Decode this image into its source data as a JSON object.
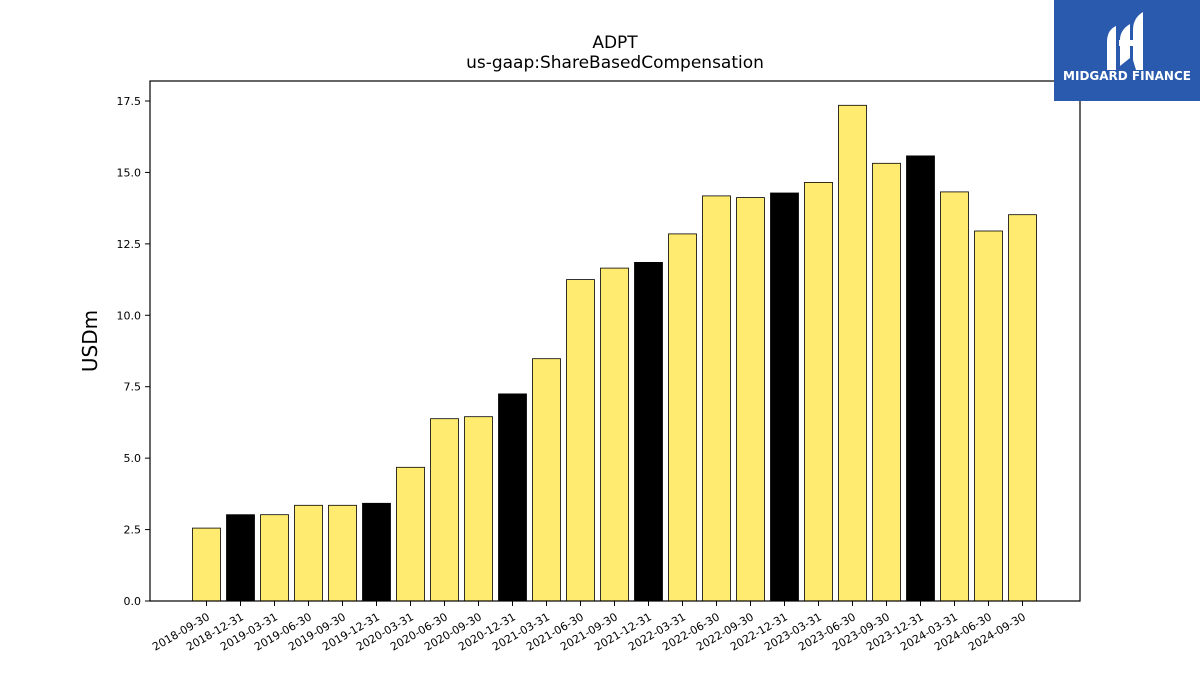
{
  "chart_data": {
    "type": "bar",
    "title": "ADPT",
    "subtitle": "us-gaap:ShareBasedCompensation",
    "xlabel": "",
    "ylabel": "USDm",
    "ylim": [
      0,
      18.2
    ],
    "yticks": [
      "0.0",
      "2.5",
      "5.0",
      "7.5",
      "10.0",
      "12.5",
      "15.0",
      "17.5"
    ],
    "categories": [
      "2018-09-30",
      "2018-12-31",
      "2019-03-31",
      "2019-06-30",
      "2019-09-30",
      "2019-12-31",
      "2020-03-31",
      "2020-06-30",
      "2020-09-30",
      "2020-12-31",
      "2021-03-31",
      "2021-06-30",
      "2021-09-30",
      "2021-12-31",
      "2022-03-31",
      "2022-06-30",
      "2022-09-30",
      "2022-12-31",
      "2023-03-31",
      "2023-06-30",
      "2023-09-30",
      "2023-12-31",
      "2024-03-31",
      "2024-06-30",
      "2024-09-30"
    ],
    "values": [
      2.55,
      3.02,
      3.02,
      3.35,
      3.35,
      3.42,
      4.68,
      6.38,
      6.45,
      7.25,
      8.48,
      11.25,
      11.65,
      11.85,
      12.85,
      14.18,
      14.12,
      14.28,
      14.65,
      17.35,
      15.32,
      15.58,
      14.32,
      12.95,
      13.52
    ],
    "bar_colors": [
      "#ffeb70",
      "#000000",
      "#ffeb70",
      "#ffeb70",
      "#ffeb70",
      "#000000",
      "#ffeb70",
      "#ffeb70",
      "#ffeb70",
      "#000000",
      "#ffeb70",
      "#ffeb70",
      "#ffeb70",
      "#000000",
      "#ffeb70",
      "#ffeb70",
      "#ffeb70",
      "#000000",
      "#ffeb70",
      "#ffeb70",
      "#ffeb70",
      "#000000",
      "#ffeb70",
      "#ffeb70",
      "#ffeb70"
    ],
    "grid": false,
    "legend": "none"
  },
  "logo": {
    "text": "MIDGARD FINANCE",
    "background": "#2a5aad",
    "foreground": "#ffffff"
  }
}
